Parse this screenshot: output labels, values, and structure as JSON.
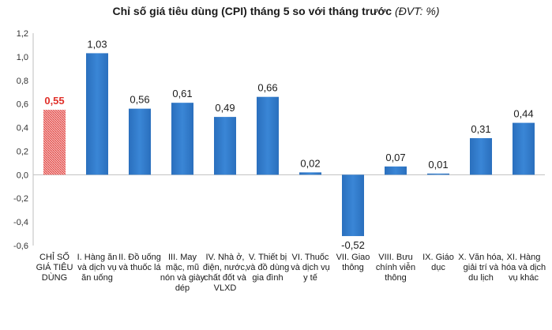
{
  "chart_data": {
    "type": "bar",
    "title": "Chỉ số giá tiêu dùng (CPI) tháng 5 so với tháng trước",
    "title_unit": "(ĐVT: %)",
    "categories": [
      "CHỈ SỐ GIÁ TIÊU DÙNG",
      "I. Hàng ăn và dịch vụ ăn uống",
      "II. Đồ uống và thuốc lá",
      "III. May mặc, mũ nón và giày dép",
      "IV. Nhà ở, điện, nước, chất đốt và VLXD",
      "V. Thiết bị và đồ dùng gia đình",
      "VI. Thuốc và dịch vụ y tế",
      "VII. Giao thông",
      "VIII. Bưu chính viễn thông",
      "IX. Giáo dục",
      "X. Văn hóa, giải trí và du lịch",
      "XI. Hàng hóa và dịch vụ khác"
    ],
    "values": [
      0.55,
      1.03,
      0.56,
      0.61,
      0.49,
      0.66,
      0.02,
      -0.52,
      0.07,
      0.01,
      0.31,
      0.44
    ],
    "data_labels": [
      "0,55",
      "1,03",
      "0,56",
      "0,61",
      "0,49",
      "0,66",
      "0,02",
      "-0,52",
      "0,07",
      "0,01",
      "0,31",
      "0,44"
    ],
    "ylim": [
      -0.6,
      1.2
    ],
    "yticks": [
      -0.6,
      -0.4,
      -0.2,
      0.0,
      0.2,
      0.4,
      0.6,
      0.8,
      1.0,
      1.2
    ],
    "ytick_labels": [
      "-0,6",
      "-0,4",
      "-0,2",
      "0,0",
      "0,2",
      "0,4",
      "0,6",
      "0,8",
      "1,0",
      "1,2"
    ],
    "grid": false,
    "legend": "none",
    "highlight_index": 0
  },
  "colors": {
    "bar": "#2e78c8",
    "bar_dark": "#1f5fa6",
    "highlight_fill": "#f4b8b8",
    "highlight_hatch": "#e0302a",
    "highlight_label": "#e0302a",
    "axis": "#bfbfbf"
  }
}
